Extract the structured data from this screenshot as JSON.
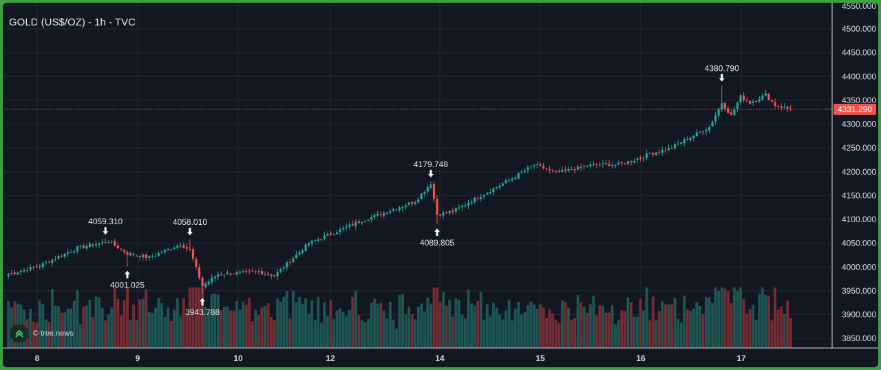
{
  "chart_data": {
    "type": "candlestick",
    "title": "GOLD (US$/OZ) - 1h - TVC",
    "xlabel": "",
    "ylabel": "",
    "ylim": [
      3830,
      4555
    ],
    "grid": true,
    "colors": {
      "up": "#26a69a",
      "down": "#ef5350",
      "background": "#131722",
      "grid": "#232837",
      "current_price_line": "#ef5350"
    },
    "x_ticks": [
      "8",
      "9",
      "10",
      "12",
      "14",
      "15",
      "16",
      "17"
    ],
    "y_ticks": [
      "4550.000",
      "4500.000",
      "4450.000",
      "4400.000",
      "4350.000",
      "4300.000",
      "4250.000",
      "4200.000",
      "4150.000",
      "4100.000",
      "4050.000",
      "4000.000",
      "3950.000",
      "3900.000",
      "3850.000"
    ],
    "anchors": [
      [
        0,
        3985
      ],
      [
        10,
        4003
      ],
      [
        22,
        4040
      ],
      [
        32,
        4054
      ],
      [
        38,
        4028
      ],
      [
        45,
        4020
      ],
      [
        55,
        4048
      ],
      [
        58,
        4035
      ],
      [
        62,
        3960
      ],
      [
        67,
        3985
      ],
      [
        80,
        3990
      ],
      [
        85,
        3982
      ],
      [
        96,
        4050
      ],
      [
        112,
        4095
      ],
      [
        130,
        4138
      ],
      [
        135,
        4176
      ],
      [
        137,
        4110
      ],
      [
        142,
        4117
      ],
      [
        162,
        4190
      ],
      [
        168,
        4215
      ],
      [
        175,
        4198
      ],
      [
        187,
        4215
      ],
      [
        195,
        4215
      ],
      [
        200,
        4225
      ],
      [
        205,
        4238
      ],
      [
        211,
        4248
      ],
      [
        224,
        4294
      ],
      [
        228,
        4345
      ],
      [
        231,
        4318
      ],
      [
        234,
        4358
      ],
      [
        237,
        4345
      ],
      [
        242,
        4362
      ],
      [
        245,
        4340
      ],
      [
        250,
        4331
      ]
    ],
    "annotations": [
      {
        "label": "4059.310",
        "value": 4059.31,
        "index": 31,
        "type": "high"
      },
      {
        "label": "4001.025",
        "value": 4001.025,
        "index": 38,
        "type": "low"
      },
      {
        "label": "4058.010",
        "value": 4058.01,
        "index": 58,
        "type": "high"
      },
      {
        "label": "3943.788",
        "value": 3943.788,
        "index": 62,
        "type": "low"
      },
      {
        "label": "4179.748",
        "value": 4179.748,
        "index": 135,
        "type": "high"
      },
      {
        "label": "4089.805",
        "value": 4089.805,
        "index": 137,
        "type": "low"
      },
      {
        "label": "4380.790",
        "value": 4380.79,
        "index": 228,
        "type": "high"
      }
    ],
    "current_price": {
      "label": "4331.290",
      "value": 4331.29
    }
  },
  "watermark": {
    "text": "© tree.news"
  }
}
